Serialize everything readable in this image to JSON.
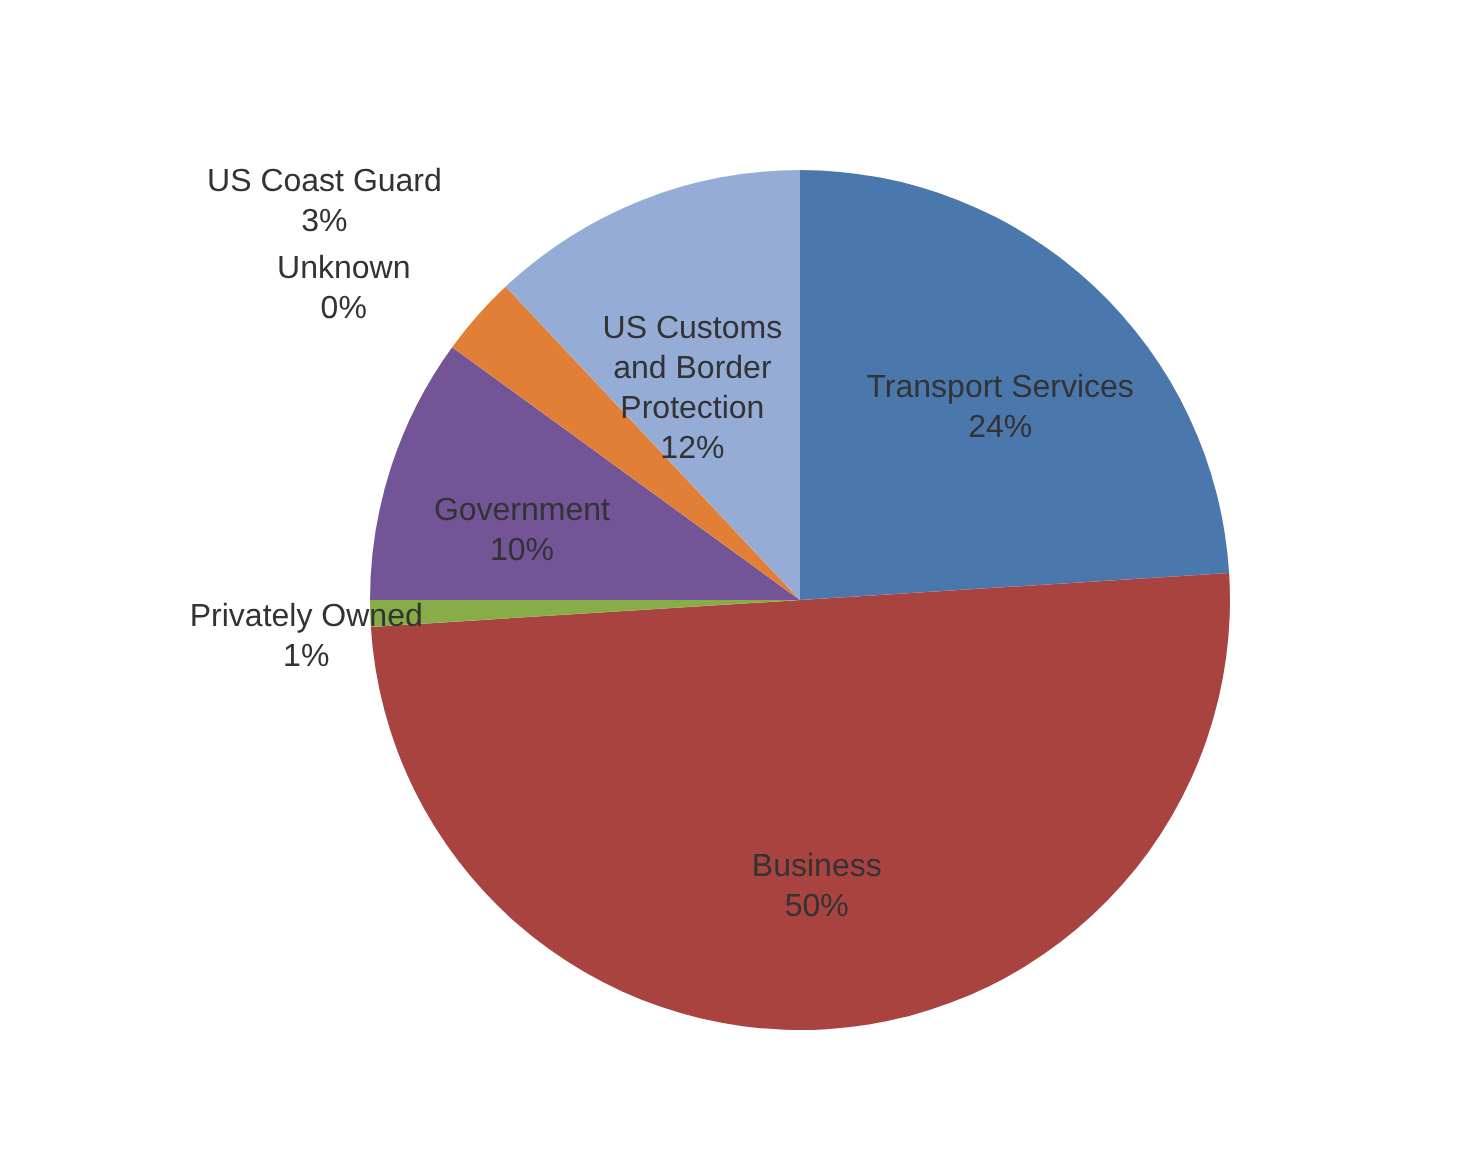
{
  "chart_data": {
    "type": "pie",
    "categories": [
      "Transport Services",
      "Business",
      "Privately Owned",
      "Government",
      "Unknown",
      "US Coast Guard",
      "US Customs and Border Protection"
    ],
    "values": [
      24,
      50,
      1,
      10,
      0,
      3,
      12
    ],
    "value_labels": [
      "24%",
      "50%",
      "1%",
      "10%",
      "0%",
      "3%",
      "12%"
    ],
    "colors": [
      "#4a78ad",
      "#a9433f",
      "#86ad48",
      "#725497",
      "#3c9fc0",
      "#e07f35",
      "#95add6"
    ]
  }
}
